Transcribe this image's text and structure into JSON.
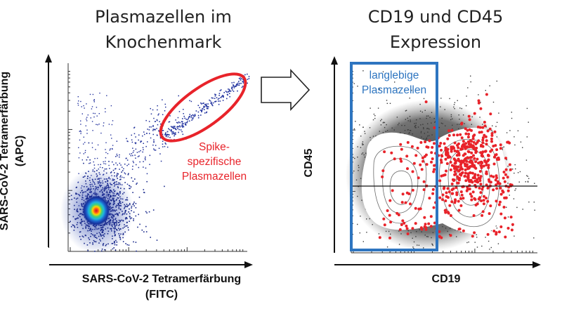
{
  "left_panel": {
    "title_line1": "Plasmazellen im",
    "title_line2": "Knochenmark",
    "y_label_line1": "SARS-CoV-2 Tetramerfärbung",
    "y_label_line2": "(APC)",
    "x_label_line1": "SARS-CoV-2 Tetramerfärbung",
    "x_label_line2": "(FITC)",
    "gate_label_line1": "Spike-",
    "gate_label_line2": "spezifische",
    "gate_label_line3": "Plasmazellen",
    "gate_color": "#e8232a"
  },
  "right_panel": {
    "title_line1": "CD19 und CD45",
    "title_line2": "Expression",
    "y_label": "CD45",
    "x_label": "CD19",
    "gate_label_line1": "langlebige",
    "gate_label_line2": "Plasmazellen",
    "gate_color": "#2e75c0"
  },
  "arrow": {
    "icon": "right-arrow-icon"
  }
}
